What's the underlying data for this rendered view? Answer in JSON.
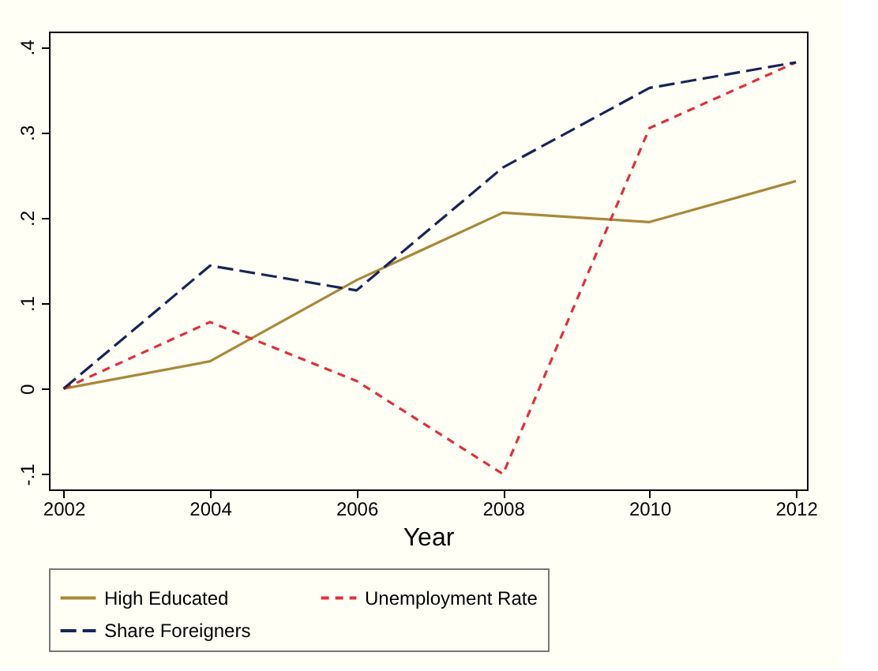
{
  "chart_data": {
    "type": "line",
    "xlabel": "Year",
    "x": [
      2002,
      2004,
      2006,
      2008,
      2010,
      2012
    ],
    "series": [
      {
        "name": "High Educated",
        "color": "#a8893a",
        "line_style": "solid",
        "values": [
          0,
          0.032,
          0.127,
          0.206,
          0.195,
          0.243
        ]
      },
      {
        "name": "Unemployment Rate",
        "color": "#e0303a",
        "line_style": "dashed",
        "values": [
          0,
          0.078,
          0.009,
          -0.1,
          0.305,
          0.382
        ]
      },
      {
        "name": "Share Foreigners",
        "color": "#1a2456",
        "line_style": "dashed",
        "values": [
          0,
          0.144,
          0.115,
          0.259,
          0.352,
          0.382
        ]
      }
    ],
    "xlim": [
      2001.8,
      2012.15
    ],
    "ylim": [
      -0.118,
      0.418
    ],
    "xticks": [
      2002,
      2004,
      2006,
      2008,
      2010,
      2012
    ],
    "yticks": [
      {
        "value": -0.1,
        "label": "-.1"
      },
      0,
      {
        "value": 0.1,
        "label": ".1"
      },
      {
        "value": 0.2,
        "label": ".2"
      },
      {
        "value": 0.3,
        "label": ".3"
      },
      {
        "value": 0.4,
        "label": ".4"
      }
    ],
    "grid": false,
    "legend": "bottom",
    "marker": "none"
  }
}
